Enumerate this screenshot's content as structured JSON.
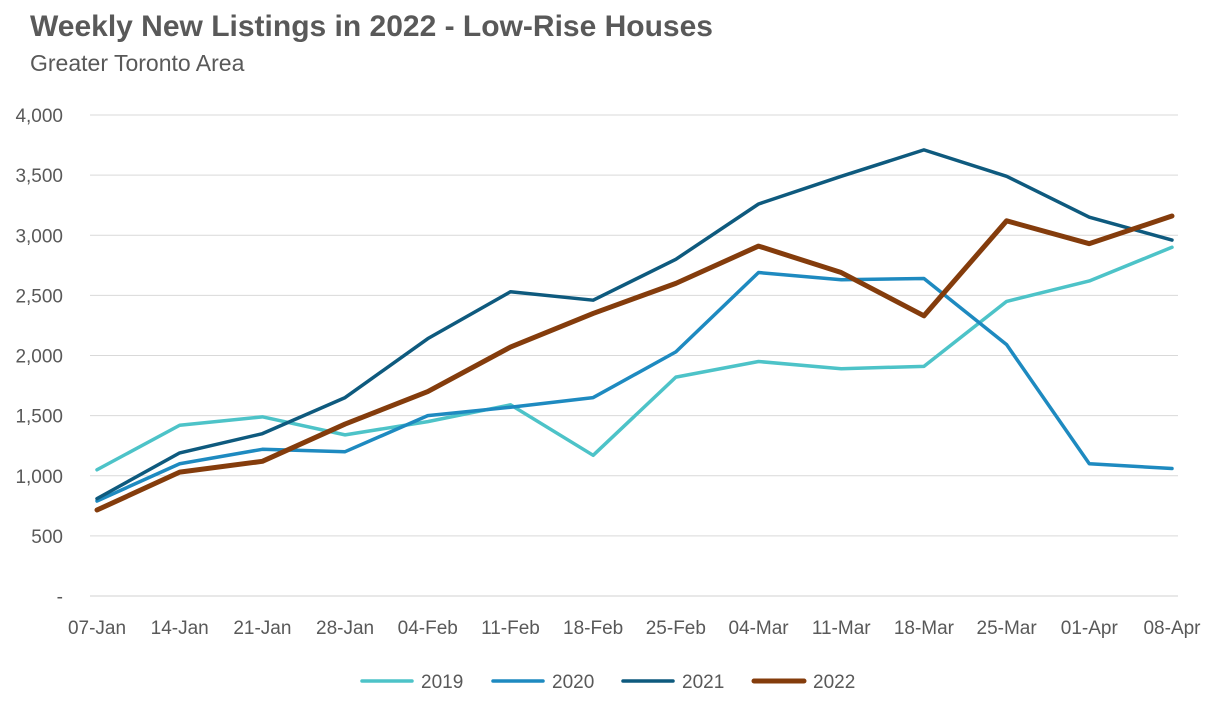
{
  "chart_data": {
    "type": "line",
    "title": "Weekly New Listings in 2022 - Low-Rise Houses",
    "subtitle": "Greater Toronto Area",
    "xlabel": "",
    "ylabel": "",
    "categories": [
      "07-Jan",
      "14-Jan",
      "21-Jan",
      "28-Jan",
      "04-Feb",
      "11-Feb",
      "18-Feb",
      "25-Feb",
      "04-Mar",
      "11-Mar",
      "18-Mar",
      "25-Mar",
      "01-Apr",
      "08-Apr"
    ],
    "ylim": [
      0,
      4000
    ],
    "yticks": [
      0,
      500,
      1000,
      1500,
      2000,
      2500,
      3000,
      3500,
      4000
    ],
    "ytick_labels": [
      "-",
      "500",
      "1,000",
      "1,500",
      "2,000",
      "2,500",
      "3,000",
      "3,500",
      "4,000"
    ],
    "grid": true,
    "legend_position": "bottom",
    "series": [
      {
        "name": "2019",
        "color": "#4DC3C8",
        "values": [
          1050,
          1420,
          1490,
          1340,
          1450,
          1590,
          1170,
          1820,
          1950,
          1890,
          1910,
          2450,
          2620,
          2900
        ]
      },
      {
        "name": "2020",
        "color": "#1E8AC0",
        "values": [
          790,
          1100,
          1220,
          1200,
          1500,
          1570,
          1650,
          2030,
          2690,
          2630,
          2640,
          2090,
          1100,
          1060
        ]
      },
      {
        "name": "2021",
        "color": "#0E5A7E",
        "values": [
          810,
          1190,
          1350,
          1650,
          2140,
          2530,
          2460,
          2800,
          3260,
          3490,
          3710,
          3490,
          3150,
          2960
        ]
      },
      {
        "name": "2022",
        "color": "#843C0C",
        "values": [
          715,
          1030,
          1120,
          1430,
          1700,
          2070,
          2350,
          2600,
          2910,
          2690,
          2330,
          3120,
          2930,
          3160
        ]
      }
    ]
  }
}
